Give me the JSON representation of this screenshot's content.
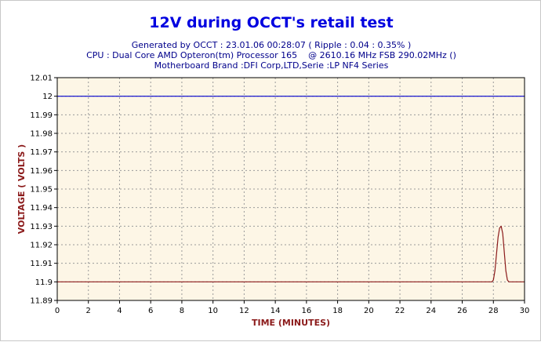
{
  "chart_data": {
    "type": "line",
    "title": "12V during OCCT's retail test",
    "subtitle_lines": [
      "Generated by OCCT : 23.01.06 00:28:07 ( Ripple : 0.04 : 0.35% )",
      "CPU : Dual Core AMD Opteron(tm) Processor 165    @ 2610.16 MHz FSB 290.02MHz ()",
      "Motherboard Brand :DFI Corp,LTD,Serie :LP NF4 Series"
    ],
    "xlabel": "TIME (MINUTES)",
    "ylabel": "VOLTAGE ( VOLTS )",
    "xlim": [
      0,
      30
    ],
    "ylim": [
      11.89,
      12.01
    ],
    "x_ticks": [
      "0",
      "2",
      "4",
      "6",
      "8",
      "10",
      "12",
      "14",
      "16",
      "18",
      "20",
      "22",
      "24",
      "26",
      "28",
      "30"
    ],
    "y_ticks": [
      "11.89",
      "11.9",
      "11.91",
      "11.92",
      "11.93",
      "11.94",
      "11.95",
      "11.96",
      "11.97",
      "11.98",
      "11.99",
      "12",
      "12.01"
    ],
    "grid": true,
    "series": [
      {
        "color": "#0000cc",
        "x": [
          0,
          30
        ],
        "y": [
          12.0,
          12.0
        ]
      },
      {
        "color": "#8b1a1a",
        "x": [
          0,
          27.9,
          28.0,
          28.1,
          28.2,
          28.3,
          28.4,
          28.5,
          28.6,
          28.7,
          28.8,
          28.9,
          29.0,
          30
        ],
        "y": [
          11.9,
          11.9,
          11.901,
          11.906,
          11.915,
          11.924,
          11.929,
          11.93,
          11.926,
          11.916,
          11.906,
          11.901,
          11.9,
          11.9
        ]
      }
    ],
    "colors": {
      "plot_background": "#fdf6e6",
      "grid": "#9a9a9a",
      "title": "#0000e0",
      "subtitle": "#00008b",
      "axis_label": "#8b1a1a"
    }
  }
}
